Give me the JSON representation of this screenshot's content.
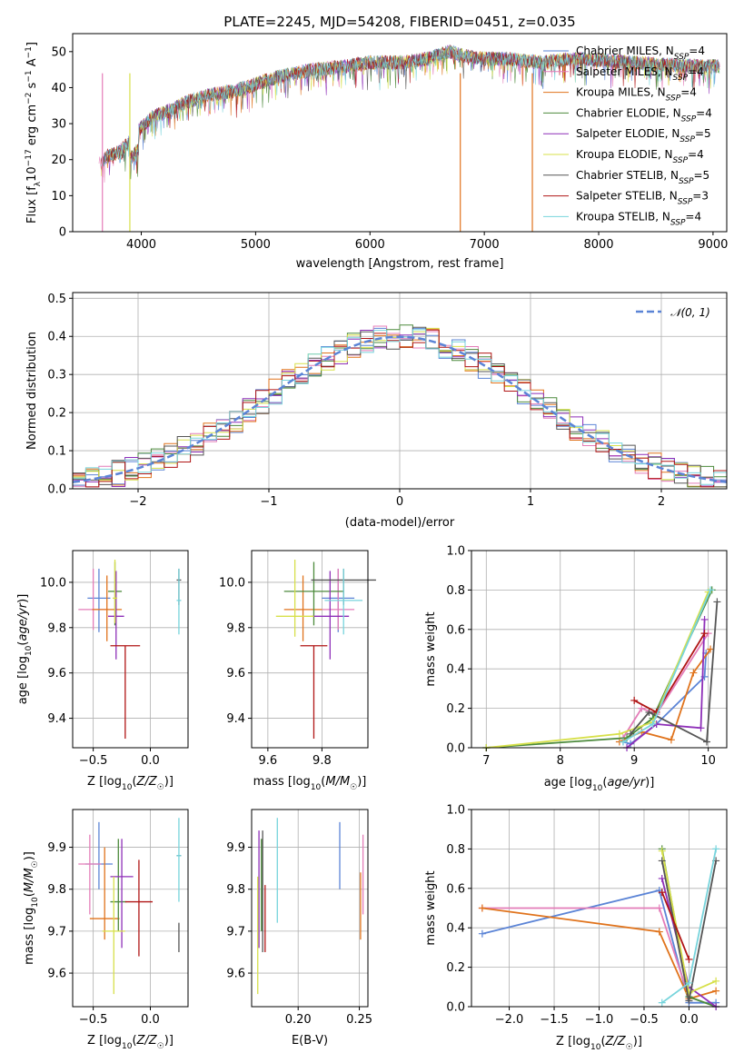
{
  "title": "PLATE=2245, MJD=54208, FIBERID=0451, z=0.035",
  "colors": {
    "chabrier_miles": "#5b84d6",
    "salpeter_miles": "#e47cb8",
    "kroupa_miles": "#e0731c",
    "chabrier_elodie": "#4c8a3c",
    "salpeter_elodie": "#8e2fb8",
    "kroupa_elodie": "#d7e04a",
    "chabrier_stelib": "#555555",
    "salpeter_stelib": "#b01515",
    "kroupa_stelib": "#77d4dc",
    "normal_curve": "#5b84d6",
    "grid": "#b0b0b0"
  },
  "chart_data": [
    {
      "id": "spectrum",
      "type": "line",
      "xlabel": "wavelength [Angstrom, rest frame]",
      "ylabel": "Flux [f_λ 10^-17 erg cm^-2 s^-1 A^-1]",
      "xlim": [
        3400,
        9120
      ],
      "ylim": [
        0,
        55
      ],
      "xticks": [
        "4000",
        "5000",
        "6000",
        "7000",
        "8000",
        "9000"
      ],
      "yticks": [
        "0",
        "10",
        "20",
        "30",
        "40",
        "50"
      ],
      "grid": false,
      "legend_placement": "right",
      "continuum": [
        [
          3650,
          19
        ],
        [
          3700,
          21
        ],
        [
          3800,
          22
        ],
        [
          3900,
          25
        ],
        [
          4000,
          29
        ],
        [
          4100,
          32
        ],
        [
          4200,
          33
        ],
        [
          4400,
          36
        ],
        [
          4600,
          38
        ],
        [
          4800,
          39
        ],
        [
          5000,
          41
        ],
        [
          5200,
          43
        ],
        [
          5500,
          45
        ],
        [
          5800,
          46
        ],
        [
          6000,
          47
        ],
        [
          6300,
          47
        ],
        [
          6500,
          48
        ],
        [
          6700,
          50
        ],
        [
          6800,
          49
        ],
        [
          7000,
          48
        ],
        [
          7200,
          48
        ],
        [
          7500,
          47
        ],
        [
          7800,
          48
        ],
        [
          8100,
          47.5
        ],
        [
          8500,
          46.5
        ],
        [
          8800,
          46
        ],
        [
          9000,
          46
        ],
        [
          9100,
          45.5
        ]
      ],
      "series": [
        {
          "name": "Chabrier MILES, N_SSP=4",
          "label_main": "Chabrier MILES, N",
          "sub": "SSP",
          "n": "=4",
          "color": "#5b84d6"
        },
        {
          "name": "Salpeter MILES, N_SSP=4",
          "label_main": "Salpeter MILES, N",
          "sub": "SSP",
          "n": "=4",
          "color": "#e47cb8"
        },
        {
          "name": "Kroupa MILES, N_SSP=4",
          "label_main": "Kroupa MILES, N",
          "sub": "SSP",
          "n": "=4",
          "color": "#e0731c"
        },
        {
          "name": "Chabrier ELODIE, N_SSP=4",
          "label_main": "Chabrier ELODIE, N",
          "sub": "SSP",
          "n": "=4",
          "color": "#4c8a3c"
        },
        {
          "name": "Salpeter ELODIE, N_SSP=5",
          "label_main": "Salpeter ELODIE, N",
          "sub": "SSP",
          "n": "=5",
          "color": "#8e2fb8"
        },
        {
          "name": "Kroupa ELODIE, N_SSP=4",
          "label_main": "Kroupa ELODIE, N",
          "sub": "SSP",
          "n": "=4",
          "color": "#d7e04a"
        },
        {
          "name": "Chabrier STELIB, N_SSP=5",
          "label_main": "Chabrier STELIB, N",
          "sub": "SSP",
          "n": "=5",
          "color": "#555555"
        },
        {
          "name": "Salpeter STELIB, N_SSP=3",
          "label_main": "Salpeter STELIB, N",
          "sub": "SSP",
          "n": "=3",
          "color": "#b01515"
        },
        {
          "name": "Kroupa STELIB, N_SSP=4",
          "label_main": "Kroupa STELIB, N",
          "sub": "SSP",
          "n": "=4",
          "color": "#77d4dc"
        }
      ]
    },
    {
      "id": "residuals",
      "type": "bar",
      "xlabel": "(data-model)/error",
      "ylabel": "Normed distribution",
      "xlim": [
        -2.5,
        2.5
      ],
      "ylim": [
        0,
        0.515
      ],
      "xticks": [
        "−2",
        "−1",
        "0",
        "1",
        "2"
      ],
      "yticks": [
        "0.0",
        "0.1",
        "0.2",
        "0.3",
        "0.4",
        "0.5"
      ],
      "grid": true,
      "legend_placement": "top-right",
      "legend_label": "𝒩(0, 1)",
      "bin_width": 0.1,
      "description_series": "9 step histograms, one per model, bins of 0.1 from -2.5 to 2.5"
    },
    {
      "id": "age_vs_Z",
      "type": "scatter",
      "xlabel": "Z [log10(Z/Z☉)]",
      "ylabel": "age [log10(age/yr)]",
      "xlim": [
        -0.68,
        0.33
      ],
      "ylim": [
        9.27,
        10.14
      ],
      "xticks": [
        "−0.5",
        "0.0"
      ],
      "yticks": [
        "9.4",
        "9.6",
        "9.8",
        "10.0"
      ],
      "grid": true,
      "points": [
        {
          "x": -0.45,
          "y": 9.93,
          "xerr": 0.1,
          "ylo": 9.78,
          "yhi": 10.06,
          "color": "#5b84d6"
        },
        {
          "x": -0.5,
          "y": 9.88,
          "xerr": 0.13,
          "ylo": 9.79,
          "yhi": 10.06,
          "color": "#e47cb8"
        },
        {
          "x": -0.38,
          "y": 9.88,
          "xerr": 0.13,
          "ylo": 9.74,
          "yhi": 10.03,
          "color": "#e0731c"
        },
        {
          "x": -0.31,
          "y": 9.96,
          "xerr": 0.06,
          "ylo": 9.81,
          "yhi": 10.09,
          "color": "#4c8a3c"
        },
        {
          "x": -0.3,
          "y": 9.85,
          "xerr": 0.07,
          "ylo": 9.66,
          "yhi": 10.05,
          "color": "#8e2fb8"
        },
        {
          "x": -0.31,
          "y": 9.93,
          "xerr": 0.02,
          "ylo": 9.82,
          "yhi": 10.1,
          "color": "#d7e04a"
        },
        {
          "x": 0.25,
          "y": 10.01,
          "xerr": 0.02,
          "ylo": 9.9,
          "yhi": 10.06,
          "color": "#555555"
        },
        {
          "x": -0.22,
          "y": 9.72,
          "xerr": 0.13,
          "ylo": 9.31,
          "yhi": 9.72,
          "color": "#b01515"
        },
        {
          "x": 0.25,
          "y": 9.92,
          "xerr": 0.02,
          "ylo": 9.77,
          "yhi": 10.06,
          "color": "#77d4dc"
        }
      ]
    },
    {
      "id": "age_vs_mass",
      "type": "scatter",
      "xlabel": "mass [log10(M/M☉)]",
      "ylabel": "",
      "xlim": [
        9.54,
        9.97
      ],
      "ylim": [
        9.27,
        10.14
      ],
      "xticks": [
        "9.6",
        "9.8"
      ],
      "yticks": [
        "9.4",
        "9.6",
        "9.8",
        "10.0"
      ],
      "grid": true,
      "points": [
        {
          "x": 9.86,
          "y": 9.93,
          "xerr": 0.06,
          "ylo": 9.78,
          "yhi": 10.06,
          "color": "#5b84d6"
        },
        {
          "x": 9.86,
          "y": 9.88,
          "xerr": 0.06,
          "ylo": 9.79,
          "yhi": 10.06,
          "color": "#e47cb8"
        },
        {
          "x": 9.73,
          "y": 9.88,
          "xerr": 0.07,
          "ylo": 9.74,
          "yhi": 10.03,
          "color": "#e0731c"
        },
        {
          "x": 9.77,
          "y": 9.96,
          "xerr": 0.11,
          "ylo": 9.81,
          "yhi": 10.09,
          "color": "#4c8a3c"
        },
        {
          "x": 9.83,
          "y": 9.85,
          "xerr": 0.07,
          "ylo": 9.66,
          "yhi": 10.05,
          "color": "#8e2fb8"
        },
        {
          "x": 9.7,
          "y": 9.85,
          "xerr": 0.07,
          "ylo": 9.76,
          "yhi": 10.1,
          "color": "#d7e04a"
        },
        {
          "x": 9.88,
          "y": 10.01,
          "xerr": 0.12,
          "ylo": 9.9,
          "yhi": 10.06,
          "color": "#555555"
        },
        {
          "x": 9.77,
          "y": 9.72,
          "xerr": 0.05,
          "ylo": 9.31,
          "yhi": 9.72,
          "color": "#b01515"
        },
        {
          "x": 9.88,
          "y": 9.92,
          "xerr": 0.07,
          "ylo": 9.77,
          "yhi": 10.06,
          "color": "#77d4dc"
        }
      ]
    },
    {
      "id": "weight_vs_age",
      "type": "line",
      "xlabel": "age [log10(age/yr)]",
      "ylabel": "mass weight",
      "xlim": [
        6.8,
        10.25
      ],
      "ylim": [
        0,
        1
      ],
      "xticks": [
        "7",
        "8",
        "9",
        "10"
      ],
      "yticks": [
        "0.0",
        "0.2",
        "0.4",
        "0.6",
        "0.8",
        "1.0"
      ],
      "grid": true,
      "series": [
        {
          "color": "#5b84d6",
          "points": [
            [
              8.85,
              0.03
            ],
            [
              8.95,
              0.02
            ],
            [
              9.3,
              0.12
            ],
            [
              9.95,
              0.36
            ],
            [
              9.97,
              0.48
            ]
          ]
        },
        {
          "color": "#e47cb8",
          "points": [
            [
              8.85,
              0.05
            ],
            [
              9.1,
              0.2
            ],
            [
              9.3,
              0.17
            ],
            [
              10.0,
              0.58
            ]
          ]
        },
        {
          "color": "#e0731c",
          "points": [
            [
              8.8,
              0.03
            ],
            [
              9.1,
              0.08
            ],
            [
              9.5,
              0.04
            ],
            [
              9.8,
              0.38
            ],
            [
              10.03,
              0.5
            ]
          ]
        },
        {
          "color": "#4c8a3c",
          "points": [
            [
              7.0,
              0.0
            ],
            [
              8.9,
              0.05
            ],
            [
              9.25,
              0.15
            ],
            [
              10.05,
              0.8
            ]
          ]
        },
        {
          "color": "#8e2fb8",
          "points": [
            [
              8.9,
              0.0
            ],
            [
              9.3,
              0.12
            ],
            [
              9.9,
              0.1
            ],
            [
              9.95,
              0.65
            ]
          ]
        },
        {
          "color": "#d7e04a",
          "points": [
            [
              7.0,
              0.0
            ],
            [
              8.8,
              0.07
            ],
            [
              9.25,
              0.13
            ],
            [
              10.0,
              0.79
            ]
          ]
        },
        {
          "color": "#555555",
          "points": [
            [
              8.95,
              0.07
            ],
            [
              9.2,
              0.18
            ],
            [
              9.98,
              0.03
            ],
            [
              10.12,
              0.74
            ]
          ]
        },
        {
          "color": "#b01515",
          "points": [
            [
              9.0,
              0.24
            ],
            [
              9.3,
              0.18
            ],
            [
              9.95,
              0.58
            ]
          ]
        },
        {
          "color": "#77d4dc",
          "points": [
            [
              8.85,
              0.03
            ],
            [
              9.25,
              0.12
            ],
            [
              10.03,
              0.8
            ]
          ]
        }
      ]
    },
    {
      "id": "mass_vs_Z",
      "type": "scatter",
      "xlabel": "Z [log10(Z/Z☉)]",
      "ylabel": "mass [log10(M/M☉)]",
      "xlim": [
        -0.68,
        0.33
      ],
      "ylim": [
        9.52,
        9.99
      ],
      "xticks": [
        "−0.5",
        "0.0"
      ],
      "yticks": [
        "9.6",
        "9.7",
        "9.8",
        "9.9"
      ],
      "grid": true,
      "points": [
        {
          "x": -0.45,
          "y": 9.86,
          "xerr": 0.12,
          "ylo": 9.8,
          "yhi": 9.96,
          "color": "#5b84d6"
        },
        {
          "x": -0.53,
          "y": 9.86,
          "xerr": 0.1,
          "ylo": 9.74,
          "yhi": 9.93,
          "color": "#e47cb8"
        },
        {
          "x": -0.4,
          "y": 9.73,
          "xerr": 0.13,
          "ylo": 9.68,
          "yhi": 9.9,
          "color": "#e0731c"
        },
        {
          "x": -0.28,
          "y": 9.77,
          "xerr": 0.07,
          "ylo": 9.7,
          "yhi": 9.92,
          "color": "#4c8a3c"
        },
        {
          "x": -0.25,
          "y": 9.83,
          "xerr": 0.1,
          "ylo": 9.66,
          "yhi": 9.92,
          "color": "#8e2fb8"
        },
        {
          "x": -0.32,
          "y": 9.7,
          "xerr": 0.1,
          "ylo": 9.55,
          "yhi": 9.83,
          "color": "#d7e04a"
        },
        {
          "x": 0.25,
          "y": 9.88,
          "xerr": 0.02,
          "ylo": 9.65,
          "yhi": 9.72,
          "color": "#555555"
        },
        {
          "x": -0.1,
          "y": 9.77,
          "xerr": 0.12,
          "ylo": 9.64,
          "yhi": 9.87,
          "color": "#b01515"
        },
        {
          "x": 0.25,
          "y": 9.88,
          "xerr": 0.02,
          "ylo": 9.77,
          "yhi": 9.97,
          "color": "#77d4dc"
        }
      ]
    },
    {
      "id": "mass_vs_ebv",
      "type": "scatter",
      "xlabel": "E(B-V)",
      "ylabel": "",
      "xlim": [
        0.162,
        0.257
      ],
      "ylim": [
        9.52,
        9.99
      ],
      "xticks": [
        "0.20",
        "0.25"
      ],
      "yticks": [
        "9.6",
        "9.7",
        "9.8",
        "9.9"
      ],
      "grid": true,
      "points": [
        {
          "x": 0.234,
          "ylo": 9.8,
          "yhi": 9.96,
          "color": "#5b84d6"
        },
        {
          "x": 0.253,
          "ylo": 9.74,
          "yhi": 9.93,
          "color": "#e47cb8"
        },
        {
          "x": 0.251,
          "ylo": 9.68,
          "yhi": 9.84,
          "color": "#e0731c"
        },
        {
          "x": 0.17,
          "ylo": 9.7,
          "yhi": 9.92,
          "color": "#4c8a3c"
        },
        {
          "x": 0.168,
          "ylo": 9.66,
          "yhi": 9.94,
          "color": "#8e2fb8"
        },
        {
          "x": 0.167,
          "ylo": 9.55,
          "yhi": 9.83,
          "color": "#d7e04a"
        },
        {
          "x": 0.171,
          "ylo": 9.65,
          "yhi": 9.94,
          "color": "#555555"
        },
        {
          "x": 0.173,
          "ylo": 9.65,
          "yhi": 9.81,
          "color": "#b01515"
        },
        {
          "x": 0.183,
          "ylo": 9.72,
          "yhi": 9.97,
          "color": "#77d4dc"
        }
      ]
    },
    {
      "id": "weight_vs_Z",
      "type": "line",
      "xlabel": "Z [log10(Z/Z☉)]",
      "ylabel": "mass weight",
      "xlim": [
        -2.42,
        0.42
      ],
      "ylim": [
        0,
        1
      ],
      "xticks": [
        "−2.0",
        "−1.5",
        "−1.0",
        "−0.5",
        "0.0"
      ],
      "yticks": [
        "0.0",
        "0.2",
        "0.4",
        "0.6",
        "0.8",
        "1.0"
      ],
      "grid": true,
      "series": [
        {
          "color": "#5b84d6",
          "points": [
            [
              -2.3,
              0.37
            ],
            [
              -0.33,
              0.59
            ],
            [
              0.0,
              0.02
            ],
            [
              0.3,
              0.02
            ]
          ]
        },
        {
          "color": "#e47cb8",
          "points": [
            [
              -2.3,
              0.5
            ],
            [
              -0.33,
              0.5
            ],
            [
              0.0,
              0.05
            ]
          ]
        },
        {
          "color": "#e0731c",
          "points": [
            [
              -2.3,
              0.5
            ],
            [
              -0.33,
              0.38
            ],
            [
              0.0,
              0.04
            ],
            [
              0.3,
              0.08
            ]
          ]
        },
        {
          "color": "#4c8a3c",
          "points": [
            [
              -0.3,
              0.8
            ],
            [
              0.0,
              0.05
            ],
            [
              0.3,
              0.0
            ]
          ]
        },
        {
          "color": "#8e2fb8",
          "points": [
            [
              -0.3,
              0.65
            ],
            [
              0.0,
              0.1
            ],
            [
              0.3,
              0.0
            ]
          ]
        },
        {
          "color": "#d7e04a",
          "points": [
            [
              -0.3,
              0.79
            ],
            [
              0.0,
              0.07
            ],
            [
              0.3,
              0.13
            ]
          ]
        },
        {
          "color": "#555555",
          "points": [
            [
              -0.3,
              0.74
            ],
            [
              0.0,
              0.03
            ],
            [
              0.3,
              0.74
            ]
          ]
        },
        {
          "color": "#b01515",
          "points": [
            [
              -0.3,
              0.58
            ],
            [
              0.0,
              0.24
            ]
          ]
        },
        {
          "color": "#77d4dc",
          "points": [
            [
              -0.3,
              0.02
            ],
            [
              0.0,
              0.12
            ],
            [
              0.3,
              0.8
            ]
          ]
        }
      ]
    }
  ]
}
